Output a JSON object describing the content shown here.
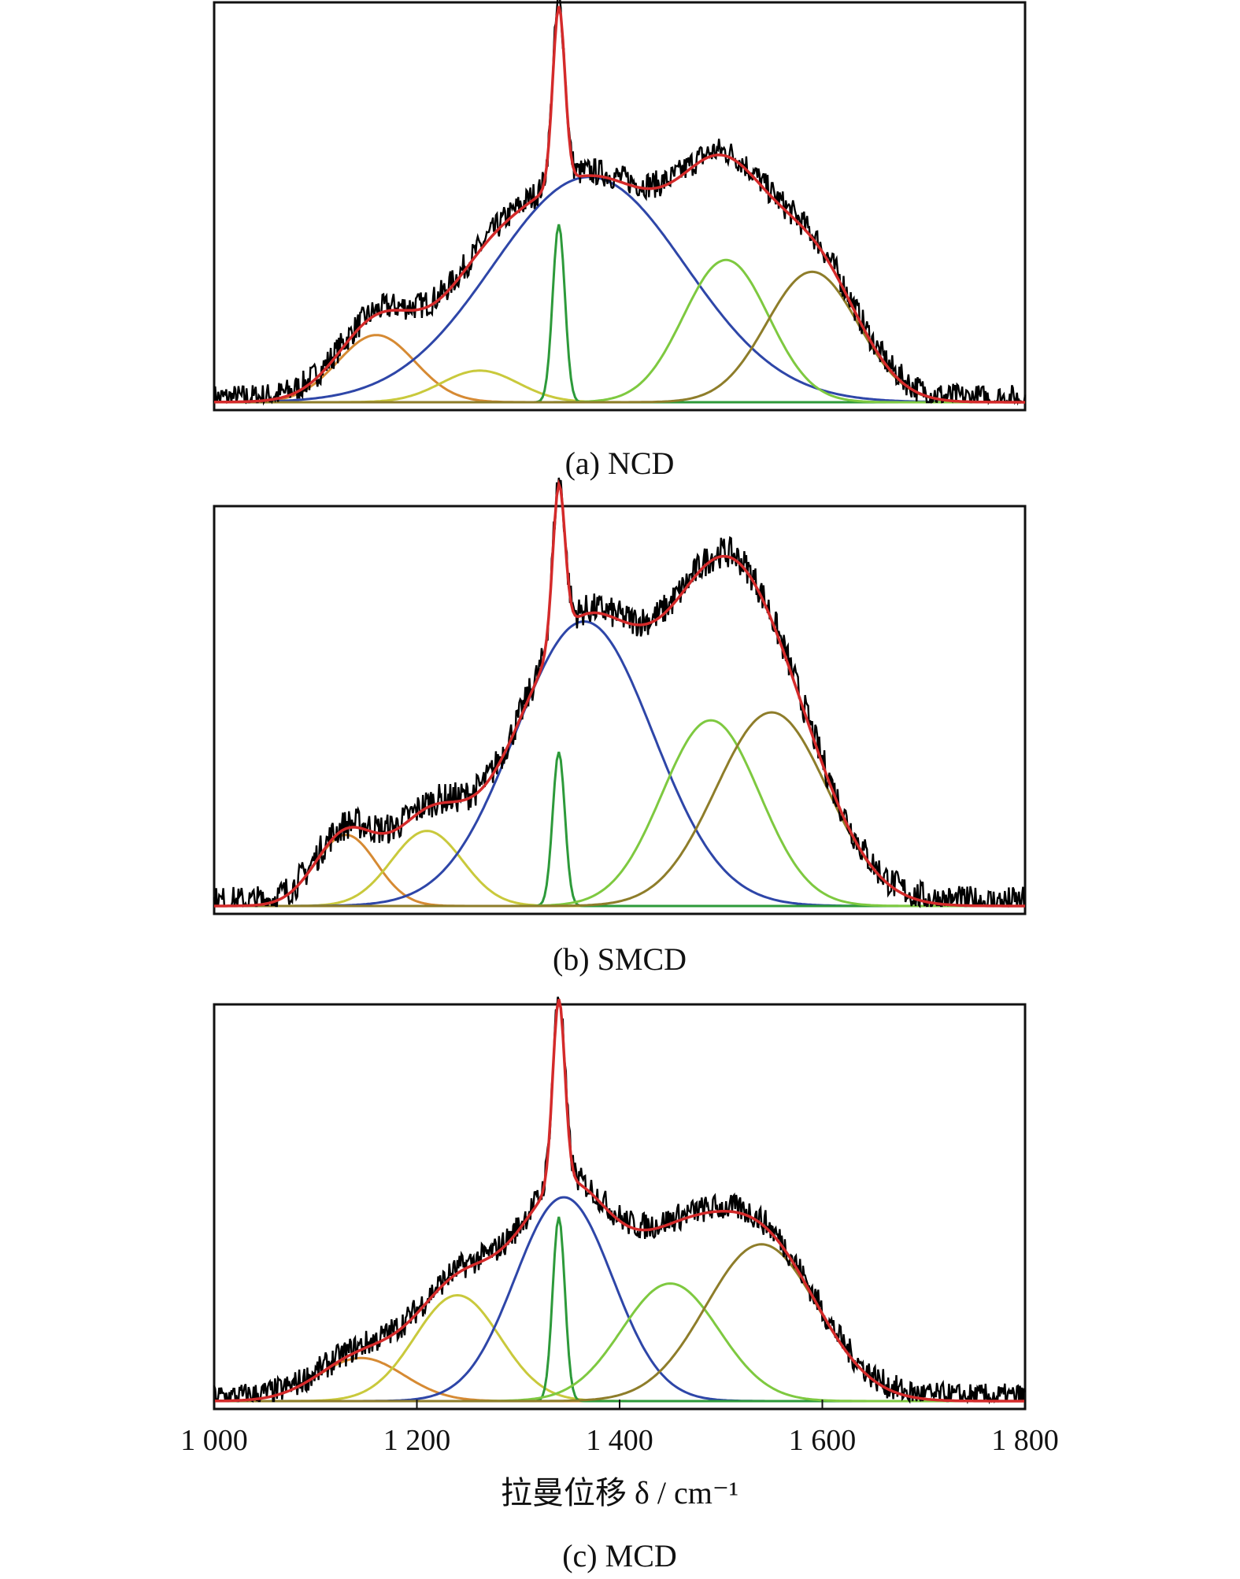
{
  "chart_data": [
    {
      "type": "line",
      "caption": "(a) NCD",
      "xlim": [
        1000,
        1800
      ],
      "ylim": [
        0,
        1.0
      ],
      "noise": 0.035,
      "components": [
        {
          "color": "#d68a33",
          "center": 1160,
          "width": 38,
          "amp": 0.17
        },
        {
          "color": "#c9c93c",
          "center": 1262,
          "width": 38,
          "amp": 0.08
        },
        {
          "color": "#2e46a8",
          "center": 1370,
          "width": 95,
          "amp": 0.57
        },
        {
          "color": "#2d9a3a",
          "center": 1340,
          "width": 6,
          "amp": 0.45
        },
        {
          "color": "#7ec940",
          "center": 1505,
          "width": 42,
          "amp": 0.36
        },
        {
          "color": "#8e7d2a",
          "center": 1590,
          "width": 45,
          "amp": 0.33
        }
      ],
      "fit_color": "#d42a2a",
      "data_color": "#000000",
      "grid": false
    },
    {
      "type": "line",
      "caption": "(b) SMCD",
      "xlim": [
        1000,
        1800
      ],
      "ylim": [
        0,
        1.0
      ],
      "noise": 0.04,
      "components": [
        {
          "color": "#d68a33",
          "center": 1130,
          "width": 30,
          "amp": 0.18
        },
        {
          "color": "#c9c93c",
          "center": 1210,
          "width": 35,
          "amp": 0.19
        },
        {
          "color": "#2e46a8",
          "center": 1365,
          "width": 68,
          "amp": 0.72
        },
        {
          "color": "#2d9a3a",
          "center": 1340,
          "width": 6,
          "amp": 0.39
        },
        {
          "color": "#7ec940",
          "center": 1490,
          "width": 48,
          "amp": 0.47
        },
        {
          "color": "#8e7d2a",
          "center": 1550,
          "width": 55,
          "amp": 0.49
        }
      ],
      "fit_color": "#d42a2a",
      "data_color": "#000000",
      "grid": false
    },
    {
      "type": "line",
      "caption": "(c) MCD",
      "xlim": [
        1000,
        1800
      ],
      "ylim": [
        0,
        1.0
      ],
      "noise": 0.035,
      "xlabel": "拉曼位移 δ / cm⁻¹",
      "ticks": [
        "1 000",
        "1 200",
        "1 400",
        "1 600",
        "1 800"
      ],
      "tick_values": [
        1000,
        1200,
        1400,
        1600,
        1800
      ],
      "components": [
        {
          "color": "#d68a33",
          "center": 1145,
          "width": 42,
          "amp": 0.11
        },
        {
          "color": "#c9c93c",
          "center": 1240,
          "width": 42,
          "amp": 0.27
        },
        {
          "color": "#2e46a8",
          "center": 1345,
          "width": 48,
          "amp": 0.52
        },
        {
          "color": "#2d9a3a",
          "center": 1340,
          "width": 6,
          "amp": 0.47
        },
        {
          "color": "#7ec940",
          "center": 1450,
          "width": 48,
          "amp": 0.3
        },
        {
          "color": "#8e7d2a",
          "center": 1540,
          "width": 55,
          "amp": 0.4
        }
      ],
      "fit_color": "#d42a2a",
      "data_color": "#000000",
      "grid": false
    }
  ]
}
